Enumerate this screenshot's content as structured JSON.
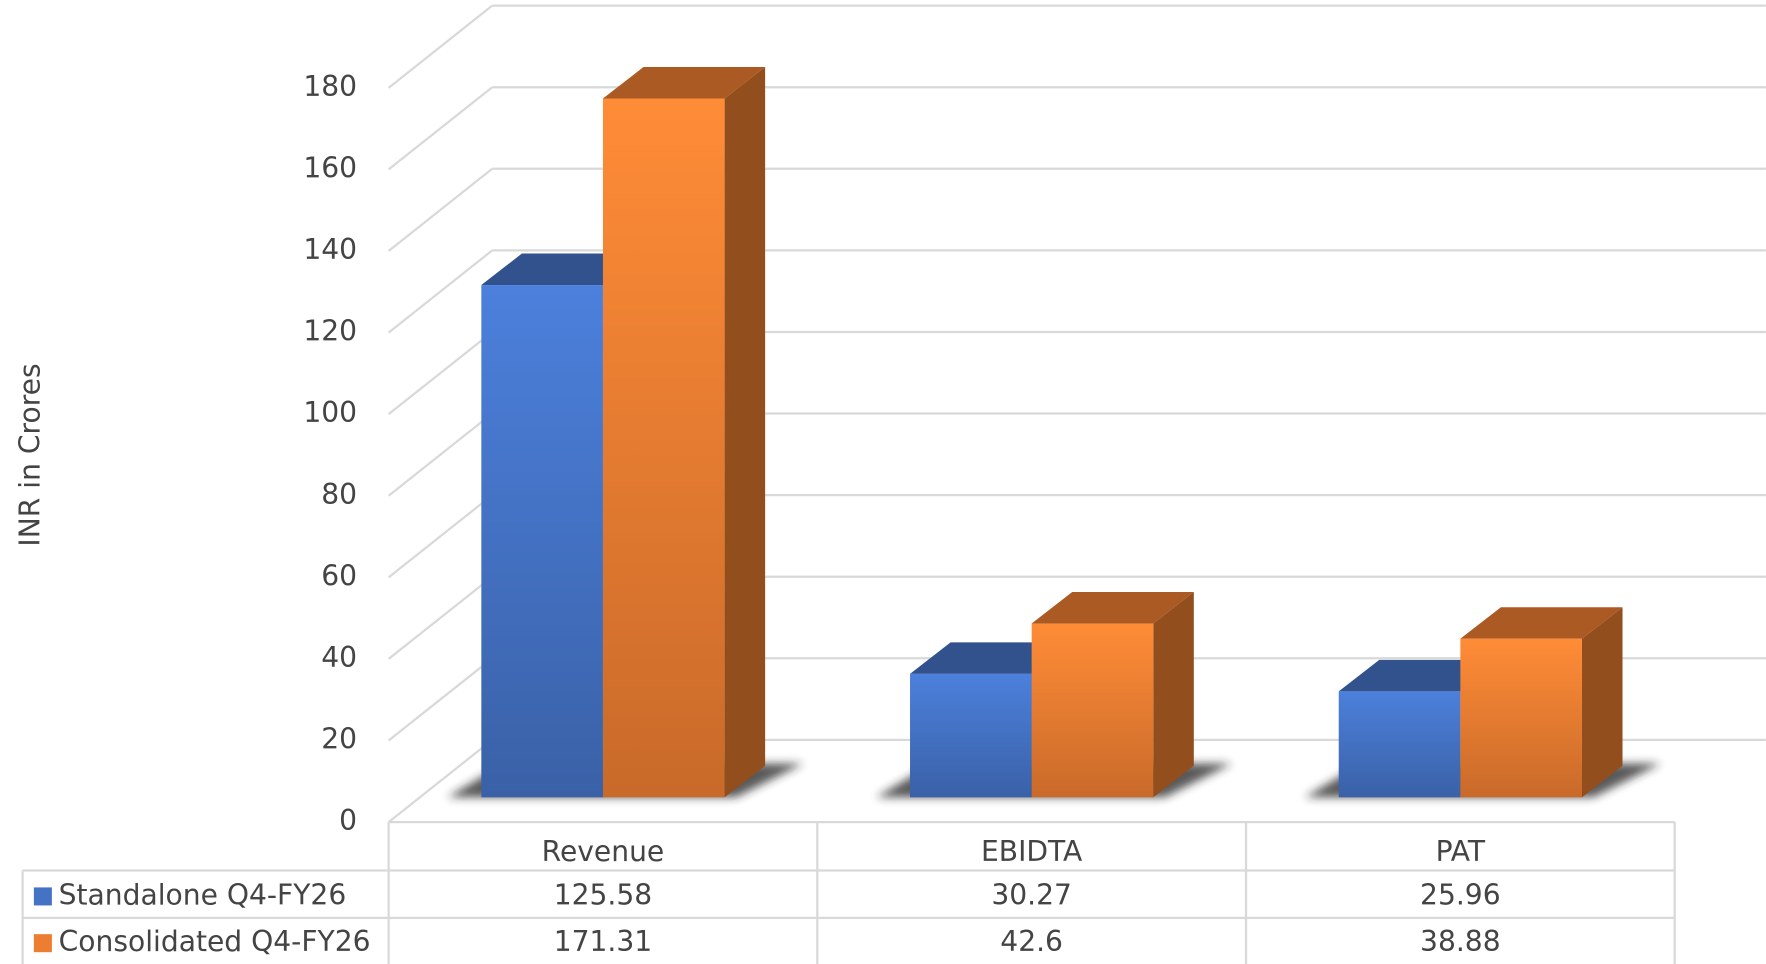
{
  "chart_data": {
    "type": "bar3d",
    "y_label": "INR in Crores",
    "categories": [
      "Revenue",
      "EBIDTA",
      "PAT"
    ],
    "series": [
      {
        "name": "Standalone Q4-FY26",
        "color": "#4472c4",
        "values": [
          125.58,
          30.27,
          25.96
        ]
      },
      {
        "name": "Consolidated Q4-FY26",
        "color": "#ed7d31",
        "values": [
          171.31,
          42.6,
          38.88
        ]
      }
    ],
    "ylim": [
      0,
      180
    ],
    "yticks": [
      0,
      20,
      40,
      60,
      80,
      100,
      120,
      140,
      160,
      180
    ],
    "grid": true,
    "data_table": true
  }
}
